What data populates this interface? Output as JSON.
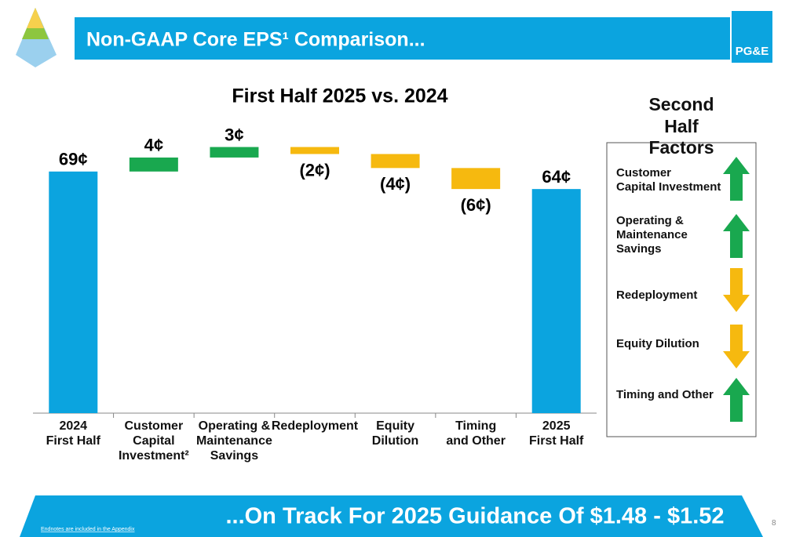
{
  "header": {
    "title": "Non-GAAP Core EPS¹ Comparison...",
    "logo": "PG&E"
  },
  "chart_data": {
    "type": "waterfall",
    "title": "First Half 2025 vs. 2024",
    "categories": [
      "2024\nFirst Half",
      "Customer\nCapital\nInvestment²",
      "Operating &\nMaintenance\nSavings",
      "Redeployment",
      "Equity\nDilution",
      "Timing\nand Other",
      "2025\nFirst Half"
    ],
    "values": [
      69,
      4,
      3,
      -2,
      -4,
      -6,
      64
    ],
    "value_labels": [
      "69¢",
      "4¢",
      "3¢",
      "(2¢)",
      "(4¢)",
      "(6¢)",
      "64¢"
    ],
    "measures": [
      "total",
      "relative",
      "relative",
      "relative",
      "relative",
      "relative",
      "total"
    ],
    "colors": [
      "#0ba4df",
      "#19a84f",
      "#19a84f",
      "#f6b90f",
      "#f6b90f",
      "#f6b90f",
      "#0ba4df"
    ],
    "ylim": [
      0,
      75
    ]
  },
  "panel": {
    "title": "Second Half\nFactors",
    "factors": [
      {
        "label": "Customer\nCapital Investment",
        "direction": "up",
        "color": "#19a84f"
      },
      {
        "label": "Operating &\nMaintenance\nSavings",
        "direction": "up",
        "color": "#19a84f"
      },
      {
        "label": "Redeployment",
        "direction": "down",
        "color": "#f6b90f"
      },
      {
        "label": "Equity Dilution",
        "direction": "down",
        "color": "#f6b90f"
      },
      {
        "label": "Timing and Other",
        "direction": "up",
        "color": "#19a84f"
      }
    ]
  },
  "footer": {
    "headline": "...On Track For 2025 Guidance Of $1.48 - $1.52",
    "endnote": "Endnotes are included in the Appendix",
    "page": "8"
  }
}
